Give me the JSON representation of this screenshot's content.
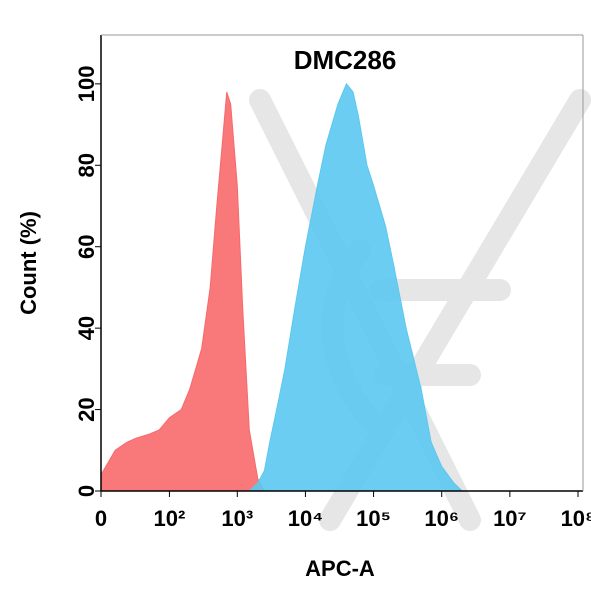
{
  "chart_data": {
    "type": "area",
    "title": "DMC286",
    "xlabel": "APC-A",
    "ylabel": "Count  (%)",
    "xscale": "asinh",
    "x": [
      0,
      10,
      20,
      30,
      50,
      70,
      100,
      150,
      200,
      300,
      400,
      500,
      600,
      700,
      800,
      1000,
      1200,
      1500,
      2000,
      2500,
      3000,
      4000,
      5000,
      7000,
      10000,
      15000,
      20000,
      30000,
      40000,
      50000,
      60000,
      80000,
      100000,
      150000,
      200000,
      300000,
      500000,
      700000,
      1000000,
      1500000,
      2000000
    ],
    "series": [
      {
        "color": "#f8696b",
        "values": [
          4,
          10,
          12,
          13,
          14,
          15,
          18,
          20,
          25,
          35,
          50,
          70,
          85,
          98,
          95,
          75,
          45,
          15,
          3,
          0,
          null,
          null,
          null,
          null,
          null,
          null,
          null,
          null,
          null,
          null,
          null,
          null,
          null,
          null,
          null,
          null,
          null,
          null,
          null,
          null,
          null
        ]
      },
      {
        "color": "#5bc8f0",
        "values": [
          null,
          null,
          null,
          null,
          null,
          null,
          null,
          null,
          null,
          null,
          null,
          null,
          null,
          null,
          null,
          null,
          null,
          0,
          2,
          5,
          12,
          22,
          30,
          45,
          60,
          75,
          85,
          95,
          100,
          98,
          92,
          80,
          75,
          65,
          55,
          40,
          25,
          12,
          6,
          2,
          0
        ]
      }
    ],
    "xlim": [
      0,
      100000000
    ],
    "xticks": [
      0,
      {
        "value": 100,
        "label": "10²"
      },
      {
        "value": 1000,
        "label": "10³"
      },
      {
        "value": 10000,
        "label": "10⁴"
      },
      {
        "value": 100000,
        "label": "10⁵"
      },
      {
        "value": 1000000,
        "label": "10⁶"
      },
      {
        "value": 10000000,
        "label": "10⁷"
      },
      {
        "value": 100000000,
        "label": "10⁸"
      }
    ],
    "ylim": [
      0,
      112
    ],
    "yticks": [
      0,
      20,
      40,
      60,
      80,
      100
    ]
  }
}
